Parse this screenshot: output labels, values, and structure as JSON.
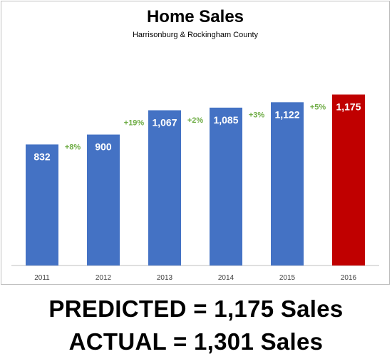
{
  "chart_data": {
    "type": "bar",
    "title": "Home Sales",
    "subtitle": "Harrisonburg & Rockingham County",
    "categories": [
      "2011",
      "2012",
      "2013",
      "2014",
      "2015",
      "2016"
    ],
    "values": [
      832,
      900,
      1067,
      1085,
      1122,
      1175
    ],
    "value_labels": [
      "832",
      "900",
      "1,067",
      "1,085",
      "1,122",
      "1,175"
    ],
    "change_labels": [
      "+8%",
      "+19%",
      "+2%",
      "+3%",
      "+5%"
    ],
    "xlabel": "",
    "ylabel": "",
    "ylim": [
      0,
      1300
    ],
    "grid": false,
    "legend": "none",
    "colors": {
      "bar": "#4472c4",
      "highlight": "#c00000",
      "change_text": "#70ad47",
      "value_text": "#ffffff",
      "axis_text": "#404040",
      "axis_line": "#bfbfbf"
    },
    "highlight_index": 5
  },
  "footer": {
    "predicted": "PREDICTED = 1,175 Sales",
    "actual": "ACTUAL = 1,301 Sales"
  }
}
